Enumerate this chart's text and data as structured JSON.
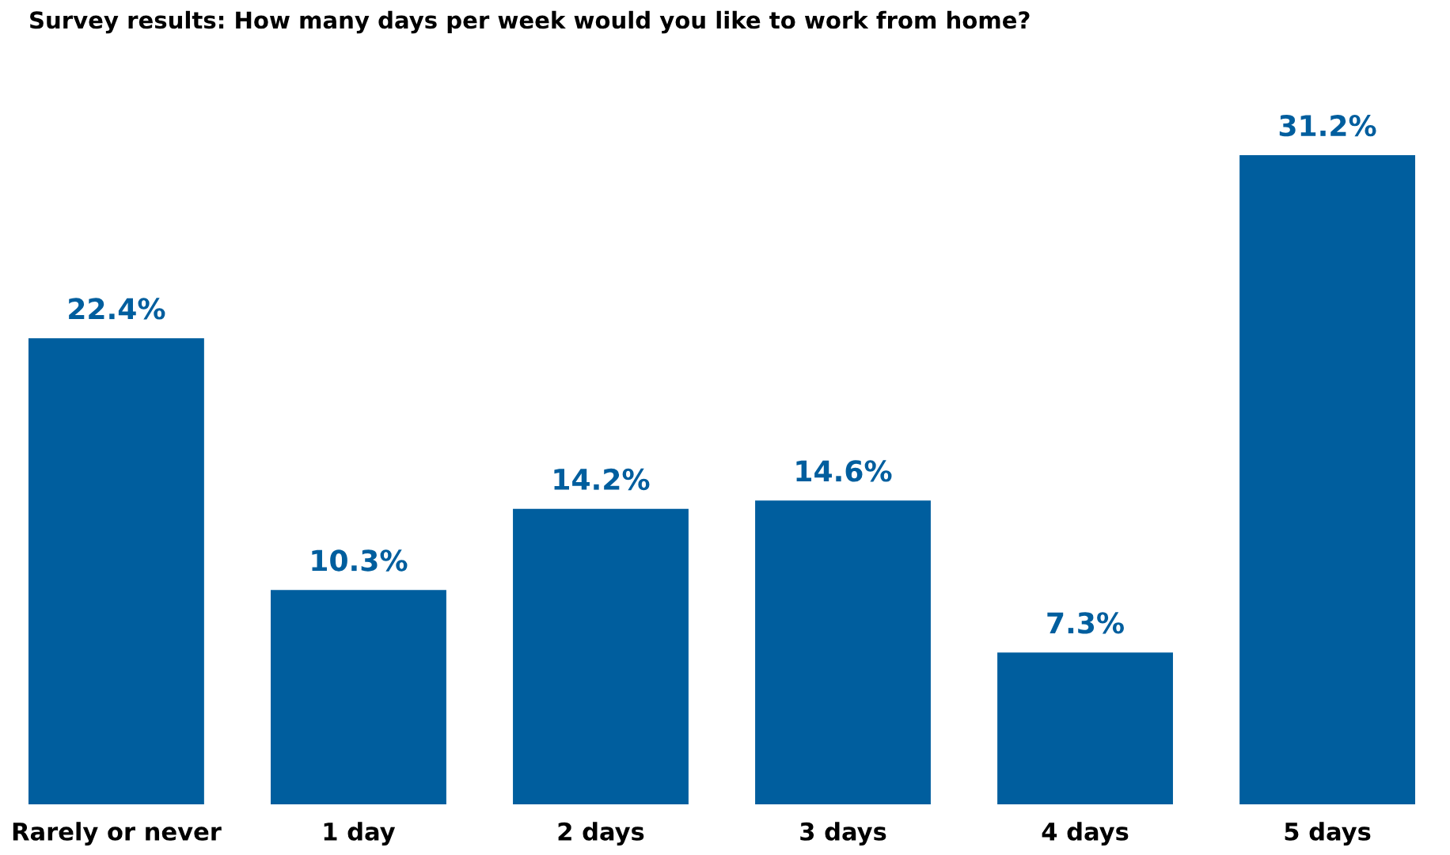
{
  "chart_data": {
    "type": "bar",
    "title": "Survey results: How many days per week would you like to work from home?",
    "categories": [
      "Rarely or never",
      "1 day",
      "2 days",
      "3 days",
      "4 days",
      "5 days"
    ],
    "values": [
      22.4,
      10.3,
      14.2,
      14.6,
      7.3,
      31.2
    ],
    "value_labels": [
      "22.4%",
      "10.3%",
      "14.2%",
      "14.6%",
      "7.3%",
      "31.2%"
    ],
    "color": "#005e9e",
    "grid": false,
    "legend": false
  }
}
